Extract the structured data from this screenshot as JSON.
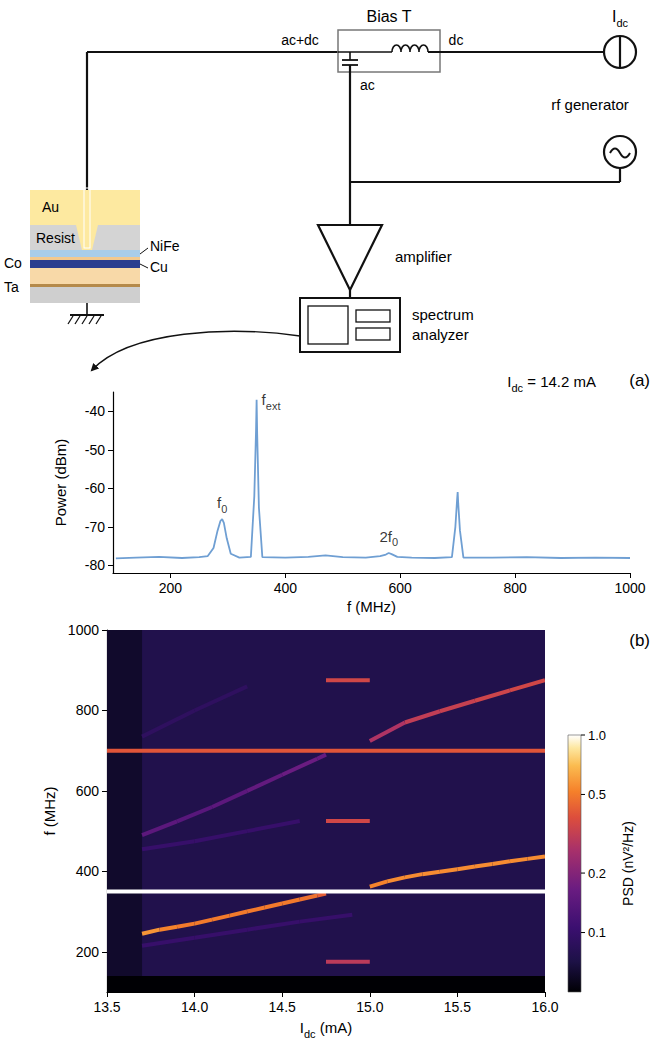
{
  "diagram": {
    "bias_t": "Bias T",
    "ports": {
      "in": "ac+dc",
      "dc": "dc",
      "ac": "ac"
    },
    "current_source": [
      {
        "text": "I"
      },
      {
        "sub": "dc"
      }
    ],
    "rf_source": "rf generator",
    "amplifier": "amplifier",
    "analyzer": "spectrum analyzer",
    "layers": {
      "top": "Au",
      "resist": "Resist",
      "free": "NiFe",
      "spacer": "Cu",
      "fixed": "Co",
      "seed": "Ta"
    }
  },
  "chart_data": [
    {
      "type": "line",
      "panel": "(a)",
      "color": "#6f9fd3",
      "xlabel": "f (MHz)",
      "ylabel": "Power (dBm)",
      "xlim": [
        100,
        1000
      ],
      "xticks": [
        200,
        400,
        600,
        800,
        1000
      ],
      "ylim": [
        -82,
        -35
      ],
      "yticks": [
        -80,
        -70,
        -60,
        -50,
        -40
      ],
      "grid": false,
      "condition": [
        {
          "text": "I"
        },
        {
          "sub": "dc"
        },
        {
          "text": " = 14.2 mA"
        }
      ],
      "x": [
        105,
        140,
        180,
        220,
        250,
        265,
        275,
        282,
        287,
        290,
        293,
        298,
        305,
        320,
        340,
        346,
        349,
        350,
        351,
        354,
        360,
        400,
        440,
        470,
        500,
        540,
        565,
        575,
        580,
        585,
        595,
        620,
        660,
        690,
        696,
        699,
        700,
        701,
        704,
        710,
        760,
        820,
        880,
        940,
        1000
      ],
      "values": [
        -78.2,
        -78.0,
        -77.8,
        -78.1,
        -77.9,
        -77.6,
        -75.5,
        -71,
        -68.5,
        -68,
        -69,
        -73,
        -77,
        -78,
        -77.8,
        -62,
        -45,
        -37,
        -46,
        -65,
        -77.9,
        -78,
        -77.8,
        -77.4,
        -77.9,
        -78,
        -77.6,
        -77.2,
        -76.8,
        -77.1,
        -77.8,
        -78,
        -78.1,
        -77.9,
        -70,
        -63,
        -61,
        -64,
        -71,
        -78,
        -78,
        -77.9,
        -78.1,
        -78,
        -78.1
      ],
      "annotations": [
        {
          "parts": [
            {
              "text": "f"
            },
            {
              "sub": "0"
            }
          ],
          "x": 290,
          "y": -68
        },
        {
          "parts": [
            {
              "text": "f"
            },
            {
              "sub": "ext"
            }
          ],
          "x": 350,
          "y": -37
        },
        {
          "parts": [
            {
              "text": "2f"
            },
            {
              "sub": "0"
            }
          ],
          "x": 580,
          "y": -76.8
        }
      ]
    },
    {
      "type": "heatmap",
      "panel": "(b)",
      "xlabel": [
        {
          "text": "I"
        },
        {
          "sub": "dc"
        },
        {
          "text": " (mA)"
        }
      ],
      "ylabel": "f (MHz)",
      "xlim": [
        13.5,
        16.0
      ],
      "xticks": [
        13.5,
        {
          "value": 14,
          "label": "14.0"
        },
        14.5,
        {
          "value": 15,
          "label": "15.0"
        },
        15.5,
        {
          "value": 16,
          "label": "16.0"
        }
      ],
      "ylim": [
        100,
        1000
      ],
      "yticks": [
        200,
        400,
        600,
        800,
        1000
      ],
      "colorbar": {
        "label": "PSD (nV²/Hz)",
        "range": [
          0.05,
          1.0
        ],
        "log": true,
        "ticks": [
          0.1,
          0.2,
          0.5,
          {
            "value": 1,
            "label": "1.0"
          }
        ]
      },
      "regions": [
        {
          "x": [
            13.5,
            16.0
          ],
          "y": [
            100,
            1000
          ],
          "psd": 0.075
        },
        {
          "x": [
            13.5,
            13.7
          ],
          "y": [
            100,
            1000
          ],
          "psd": 0.062
        },
        {
          "x": [
            13.5,
            16.0
          ],
          "y": [
            100,
            140
          ],
          "psd": 0.05
        }
      ],
      "traces": [
        {
          "x": [
            13.7,
            13.8,
            13.9,
            14.0,
            14.1,
            14.2,
            14.3,
            14.4,
            14.5,
            14.6,
            14.7,
            14.75
          ],
          "values": [
            245,
            255,
            262,
            270,
            280,
            290,
            300,
            310,
            320,
            330,
            340,
            345
          ],
          "psd": [
            0.6,
            0.55,
            0.5,
            0.5,
            0.5,
            0.5,
            0.5,
            0.5,
            0.5,
            0.5,
            0.45,
            0.4
          ]
        },
        {
          "x": [
            15.0,
            15.1,
            15.2,
            15.3,
            15.4,
            15.5,
            15.6,
            15.7,
            15.8,
            15.9,
            16.0
          ],
          "values": [
            362,
            375,
            385,
            393,
            399,
            405,
            412,
            418,
            425,
            431,
            437
          ],
          "psd": [
            0.5,
            0.55,
            0.55,
            0.55,
            0.55,
            0.55,
            0.55,
            0.55,
            0.55,
            0.55,
            0.55
          ]
        },
        {
          "x": [
            13.7,
            13.9,
            14.1,
            14.3,
            14.5,
            14.7,
            14.75
          ],
          "values": [
            490,
            524,
            560,
            600,
            640,
            680,
            690
          ],
          "psd": [
            0.15,
            0.14,
            0.14,
            0.15,
            0.16,
            0.17,
            0.15
          ]
        },
        {
          "x": [
            15.0,
            15.2,
            15.4,
            15.6,
            15.8,
            16.0
          ],
          "values": [
            724,
            770,
            798,
            824,
            850,
            875
          ],
          "psd": [
            0.25,
            0.3,
            0.32,
            0.33,
            0.35,
            0.35
          ]
        },
        {
          "x": [
            13.7,
            14.0,
            14.3,
            14.6,
            14.9
          ],
          "values": [
            215,
            235,
            255,
            275,
            292
          ],
          "psd": [
            0.1,
            0.1,
            0.1,
            0.1,
            0.1
          ]
        },
        {
          "x": [
            13.7,
            14.0,
            14.3,
            14.6
          ],
          "values": [
            455,
            475,
            500,
            525
          ],
          "psd": [
            0.1,
            0.1,
            0.1,
            0.1
          ]
        },
        {
          "x": [
            13.7,
            14.0,
            14.3
          ],
          "values": [
            735,
            800,
            860
          ],
          "psd": [
            0.09,
            0.09,
            0.09
          ]
        },
        {
          "x": [
            13.5,
            16.0
          ],
          "values": [
            350,
            350
          ],
          "psd": [
            1.0,
            1.0
          ]
        },
        {
          "x": [
            13.5,
            16.0
          ],
          "values": [
            700,
            700
          ],
          "psd": [
            0.4,
            0.4
          ]
        },
        {
          "x": [
            14.75,
            15.0
          ],
          "values": [
            175,
            175
          ],
          "psd": [
            0.3,
            0.3
          ]
        },
        {
          "x": [
            14.75,
            15.0
          ],
          "values": [
            525,
            525
          ],
          "psd": [
            0.35,
            0.35
          ]
        },
        {
          "x": [
            14.75,
            15.0
          ],
          "values": [
            875,
            875
          ],
          "psd": [
            0.35,
            0.35
          ]
        }
      ]
    }
  ]
}
